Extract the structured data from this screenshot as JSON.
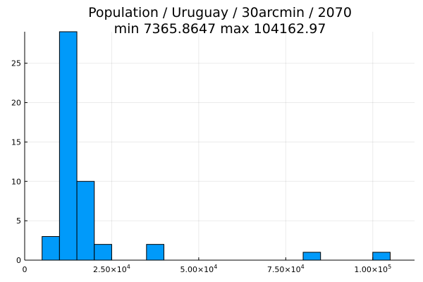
{
  "chart_data": {
    "type": "bar",
    "title_line1": "Population / Uruguay / 30arcmin / 2070",
    "title_line2": "min 7365.8647  max 104162.97",
    "bin_width": 5000,
    "bins": [
      {
        "start": 5000,
        "end": 10000,
        "count": 3
      },
      {
        "start": 10000,
        "end": 15000,
        "count": 29
      },
      {
        "start": 15000,
        "end": 20000,
        "count": 10
      },
      {
        "start": 20000,
        "end": 25000,
        "count": 2
      },
      {
        "start": 35000,
        "end": 40000,
        "count": 2
      },
      {
        "start": 80000,
        "end": 85000,
        "count": 1
      },
      {
        "start": 100000,
        "end": 105000,
        "count": 1
      }
    ],
    "xlim": [
      0,
      112000
    ],
    "ylim": [
      0,
      29
    ],
    "x_ticks": [
      {
        "value": 0,
        "mantissa": "0",
        "exponent": ""
      },
      {
        "value": 25000,
        "mantissa": "2.50×10",
        "exponent": "4"
      },
      {
        "value": 50000,
        "mantissa": "5.00×10",
        "exponent": "4"
      },
      {
        "value": 75000,
        "mantissa": "7.50×10",
        "exponent": "4"
      },
      {
        "value": 100000,
        "mantissa": "1.00×10",
        "exponent": "5"
      }
    ],
    "y_ticks": [
      0,
      5,
      10,
      15,
      20,
      25
    ],
    "grid": true,
    "bar_color": "#009AFA",
    "legend": false
  }
}
